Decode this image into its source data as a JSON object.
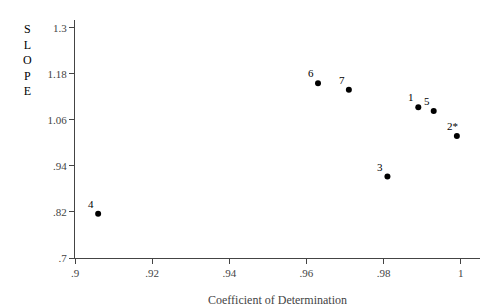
{
  "chart_data": {
    "type": "scatter",
    "xlabel": "Coefficient of Determination",
    "ylabel": "SLOPE",
    "x": [
      0.989,
      0.999,
      0.981,
      0.906,
      0.993,
      0.963,
      0.971
    ],
    "values": [
      1.093,
      1.018,
      0.912,
      0.815,
      1.083,
      1.155,
      1.138
    ],
    "annotations": [
      "1",
      "2*",
      "3",
      "4",
      "5",
      "6",
      "7"
    ],
    "color": "black",
    "marker": "dot",
    "xlim": [
      0.9,
      1.005
    ],
    "ylim": [
      0.7,
      1.32
    ],
    "xticks": [
      {
        "value": 0.9,
        "label": ".9"
      },
      {
        "value": 0.92,
        "label": ".92"
      },
      {
        "value": 0.94,
        "label": ".94"
      },
      {
        "value": 0.96,
        "label": ".96"
      },
      {
        "value": 0.98,
        "label": ".98"
      },
      1
    ],
    "yticks": [
      {
        "value": 0.7,
        "label": ".7"
      },
      {
        "value": 0.82,
        "label": ".82"
      },
      {
        "value": 0.94,
        "label": ".94"
      },
      1.06,
      1.18,
      1.3
    ],
    "grid": false
  }
}
